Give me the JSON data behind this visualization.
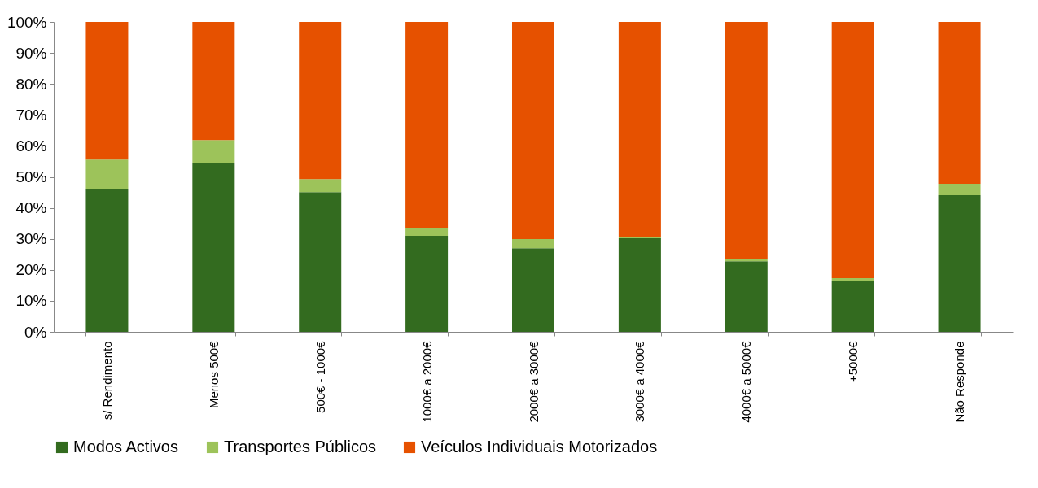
{
  "chart_data": {
    "type": "bar",
    "stacked": true,
    "categories": [
      "s/ Rendimento",
      "Menos 500€",
      "500€ - 1000€",
      "1000€ a 2000€",
      "2000€ a 3000€",
      "3000€ a 4000€",
      "4000€ a 5000€",
      "+5000€",
      "Não Responde"
    ],
    "series": [
      {
        "name": "Modos Activos",
        "color": "#336b1f",
        "values": [
          46.2,
          54.6,
          45.1,
          31.0,
          27.0,
          30.2,
          22.8,
          16.3,
          44.1
        ]
      },
      {
        "name": "Transportes Públicos",
        "color": "#9dc35a",
        "values": [
          9.4,
          7.3,
          4.2,
          2.6,
          2.9,
          0.3,
          0.8,
          1.0,
          3.7
        ]
      },
      {
        "name": "Veículos Individuais Motorizados",
        "color": "#e65100",
        "values": [
          44.4,
          38.1,
          50.7,
          66.4,
          70.1,
          69.5,
          76.4,
          82.7,
          52.2
        ]
      }
    ],
    "ylim": [
      0,
      100
    ],
    "yticks": [
      {
        "value": 0,
        "label": "0%"
      },
      {
        "value": 10,
        "label": "10%"
      },
      {
        "value": 20,
        "label": "20%"
      },
      {
        "value": 30,
        "label": "30%"
      },
      {
        "value": 40,
        "label": "40%"
      },
      {
        "value": 50,
        "label": "50%"
      },
      {
        "value": 60,
        "label": "60%"
      },
      {
        "value": 70,
        "label": "70%"
      },
      {
        "value": 80,
        "label": "80%"
      },
      {
        "value": 90,
        "label": "90%"
      },
      {
        "value": 100,
        "label": "100%"
      }
    ],
    "grid": false,
    "legend": "bottom"
  }
}
